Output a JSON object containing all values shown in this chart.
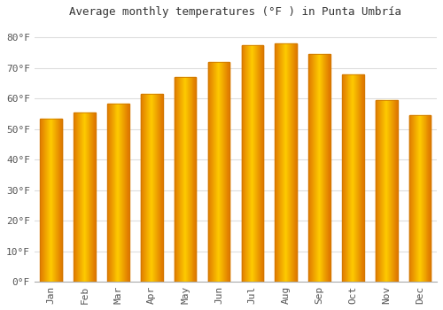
{
  "title": "Average monthly temperatures (°F ) in Punta Umbría",
  "months": [
    "Jan",
    "Feb",
    "Mar",
    "Apr",
    "May",
    "Jun",
    "Jul",
    "Aug",
    "Sep",
    "Oct",
    "Nov",
    "Dec"
  ],
  "values": [
    53.5,
    55.5,
    58.5,
    61.5,
    67.0,
    72.0,
    77.5,
    78.0,
    74.5,
    68.0,
    59.5,
    54.5
  ],
  "bar_color_center": "#FFD966",
  "bar_color_edge": "#E08000",
  "bar_color_main": "#FFA500",
  "background_color": "#FFFFFF",
  "grid_color": "#DDDDDD",
  "ylim": [
    0,
    85
  ],
  "yticks": [
    0,
    10,
    20,
    30,
    40,
    50,
    60,
    70,
    80
  ],
  "title_fontsize": 9,
  "tick_fontsize": 8,
  "bar_width": 0.65
}
